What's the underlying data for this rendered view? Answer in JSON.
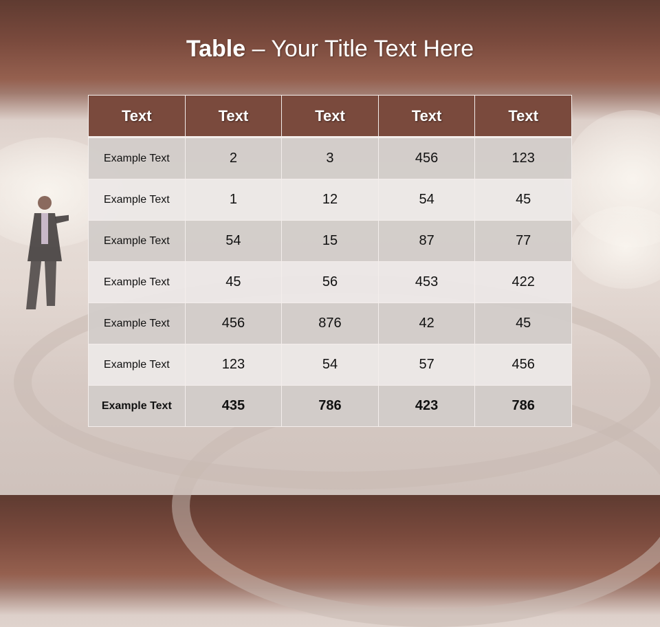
{
  "slide": {
    "title_bold": "Table",
    "title_rest": " – Your Title Text Here"
  },
  "table": {
    "headers": [
      "Text",
      "Text",
      "Text",
      "Text",
      "Text"
    ],
    "rows": [
      [
        "Example Text",
        "2",
        "3",
        "456",
        "123"
      ],
      [
        "Example Text",
        "1",
        "12",
        "54",
        "45"
      ],
      [
        "Example Text",
        "54",
        "15",
        "87",
        "77"
      ],
      [
        "Example Text",
        "45",
        "56",
        "453",
        "422"
      ],
      [
        "Example Text",
        "456",
        "876",
        "42",
        "45"
      ],
      [
        "Example Text",
        "123",
        "54",
        "57",
        "456"
      ],
      [
        "Example Text",
        "435",
        "786",
        "423",
        "786"
      ]
    ]
  },
  "colors": {
    "header": "#7a4a3d",
    "row_dark": "#d2ccc9",
    "row_light": "#ece8e7",
    "banner": "#7a4a3d"
  }
}
